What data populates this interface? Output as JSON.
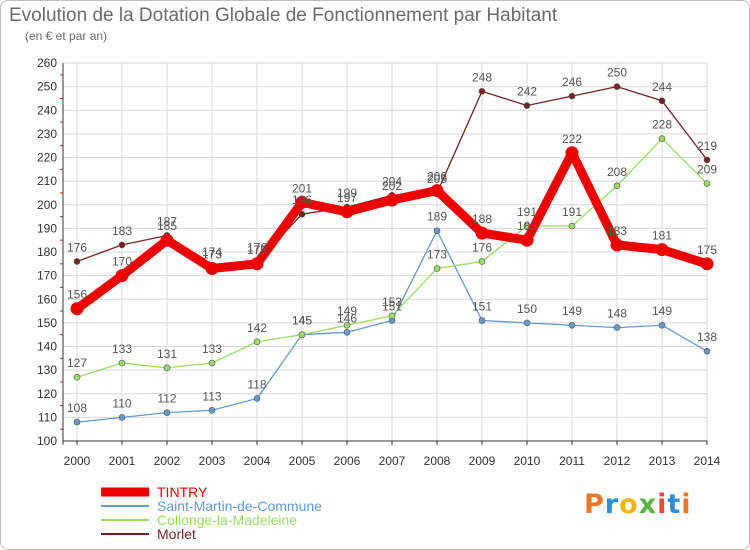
{
  "title": "Evolution de la Dotation Globale de Fonctionnement par Habitant",
  "subtitle": "(en € et par an)",
  "logo": {
    "letters": [
      "P",
      "r",
      "o",
      "x",
      "i",
      "t",
      "i"
    ],
    "colors": [
      "#e8792a",
      "#2f8ed8",
      "#f0b41b",
      "#57b540",
      "#e84a3b",
      "#2f8ed8",
      "#e8792a"
    ]
  },
  "chart_data": {
    "type": "line",
    "x": [
      "2000",
      "2001",
      "2002",
      "2003",
      "2004",
      "2005",
      "2006",
      "2007",
      "2008",
      "2009",
      "2010",
      "2011",
      "2012",
      "2013",
      "2014"
    ],
    "ylim": [
      100,
      260
    ],
    "yticks": [
      100,
      110,
      120,
      130,
      140,
      150,
      160,
      170,
      180,
      190,
      200,
      210,
      220,
      230,
      240,
      250,
      260
    ],
    "grid": true,
    "legend_position": "bottom-left",
    "series": [
      {
        "name": "TINTRY",
        "color": "#ee0000",
        "values": [
          156,
          170,
          185,
          173,
          175,
          201,
          197,
          202,
          206,
          188,
          185,
          222,
          183,
          181,
          175
        ]
      },
      {
        "name": "Saint-Martin-de-Commune",
        "color": "#6699cc",
        "values": [
          108,
          110,
          112,
          113,
          118,
          145,
          146,
          151,
          189,
          151,
          150,
          149,
          148,
          149,
          138
        ]
      },
      {
        "name": "Collonge-la-Madeleine",
        "color": "#99dd66",
        "values": [
          127,
          133,
          131,
          133,
          142,
          145,
          149,
          153,
          173,
          176,
          191,
          191,
          208,
          228,
          209
        ]
      },
      {
        "name": "Morlet",
        "color": "#772222",
        "values": [
          176,
          183,
          187,
          174,
          176,
          196,
          199,
          204,
          205,
          248,
          242,
          246,
          250,
          244,
          219
        ]
      }
    ]
  }
}
